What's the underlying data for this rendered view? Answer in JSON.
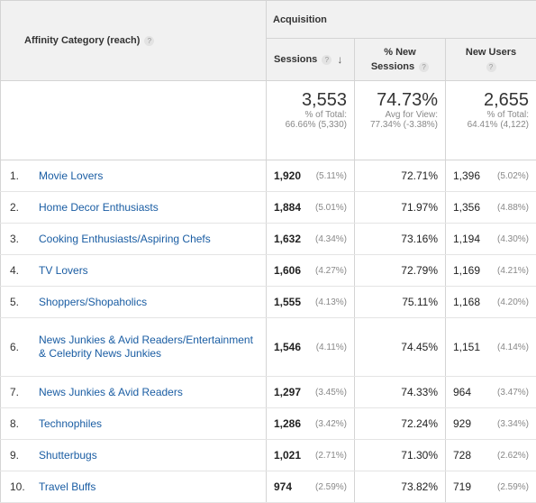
{
  "header": {
    "dimension": "Affinity Category (reach)",
    "group": "Acquisition",
    "sessions": "Sessions",
    "new_sessions_line1": "% New",
    "new_sessions_line2": "Sessions",
    "new_users": "New Users",
    "help_glyph": "?",
    "sort_glyph": "↓"
  },
  "totals": {
    "sessions": {
      "value": "3,553",
      "line1": "% of Total:",
      "line2": "66.66% (5,330)"
    },
    "new_sessions": {
      "value": "74.73%",
      "line1": "Avg for View:",
      "line2": "77.34% (-3.38%)"
    },
    "new_users": {
      "value": "2,655",
      "line1": "% of Total:",
      "line2": "64.41% (4,122)"
    }
  },
  "rows": [
    {
      "index": "1.",
      "name": "Movie Lovers",
      "sessions": "1,920",
      "sessions_pct": "(5.11%)",
      "new_sessions": "72.71%",
      "new_users": "1,396",
      "new_users_pct": "(5.02%)"
    },
    {
      "index": "2.",
      "name": "Home Decor Enthusiasts",
      "sessions": "1,884",
      "sessions_pct": "(5.01%)",
      "new_sessions": "71.97%",
      "new_users": "1,356",
      "new_users_pct": "(4.88%)"
    },
    {
      "index": "3.",
      "name": "Cooking Enthusiasts/Aspiring Chefs",
      "sessions": "1,632",
      "sessions_pct": "(4.34%)",
      "new_sessions": "73.16%",
      "new_users": "1,194",
      "new_users_pct": "(4.30%)"
    },
    {
      "index": "4.",
      "name": "TV Lovers",
      "sessions": "1,606",
      "sessions_pct": "(4.27%)",
      "new_sessions": "72.79%",
      "new_users": "1,169",
      "new_users_pct": "(4.21%)"
    },
    {
      "index": "5.",
      "name": "Shoppers/Shopaholics",
      "sessions": "1,555",
      "sessions_pct": "(4.13%)",
      "new_sessions": "75.11%",
      "new_users": "1,168",
      "new_users_pct": "(4.20%)"
    },
    {
      "index": "6.",
      "name": "News Junkies & Avid Readers/Entertainment & Celebrity News Junkies",
      "sessions": "1,546",
      "sessions_pct": "(4.11%)",
      "new_sessions": "74.45%",
      "new_users": "1,151",
      "new_users_pct": "(4.14%)"
    },
    {
      "index": "7.",
      "name": "News Junkies & Avid Readers",
      "sessions": "1,297",
      "sessions_pct": "(3.45%)",
      "new_sessions": "74.33%",
      "new_users": "964",
      "new_users_pct": "(3.47%)"
    },
    {
      "index": "8.",
      "name": "Technophiles",
      "sessions": "1,286",
      "sessions_pct": "(3.42%)",
      "new_sessions": "72.24%",
      "new_users": "929",
      "new_users_pct": "(3.34%)"
    },
    {
      "index": "9.",
      "name": "Shutterbugs",
      "sessions": "1,021",
      "sessions_pct": "(2.71%)",
      "new_sessions": "71.30%",
      "new_users": "728",
      "new_users_pct": "(2.62%)"
    },
    {
      "index": "10.",
      "name": "Travel Buffs",
      "sessions": "974",
      "sessions_pct": "(2.59%)",
      "new_sessions": "73.82%",
      "new_users": "719",
      "new_users_pct": "(2.59%)"
    }
  ]
}
